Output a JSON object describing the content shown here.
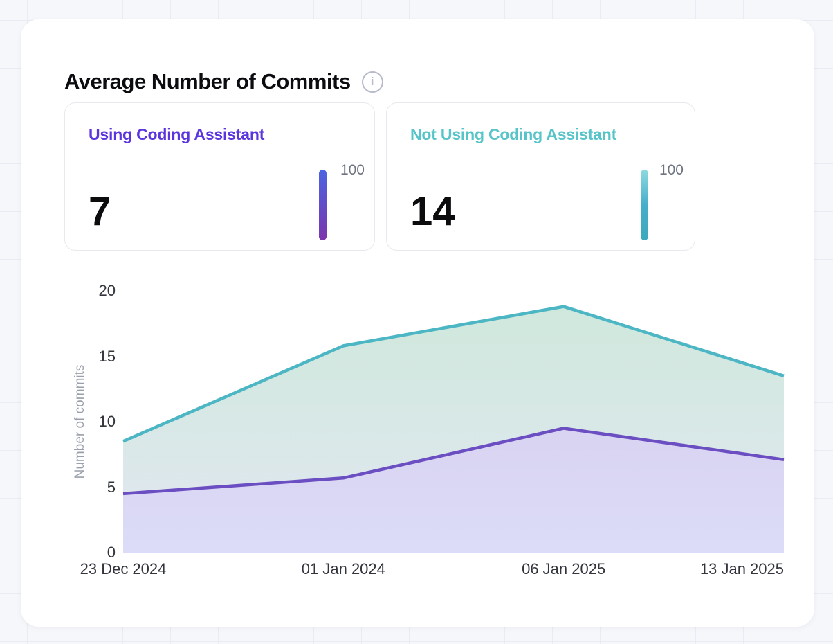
{
  "header": {
    "title": "Average Number of Commits",
    "info_icon": "i"
  },
  "stats": [
    {
      "label": "Using Coding Assistant",
      "label_color": "#5b35dd",
      "value": "7",
      "scale_max": "100",
      "bar_gradient": [
        "#4a64e2",
        "#7c35ad"
      ]
    },
    {
      "label": "Not Using Coding Assistant",
      "label_color": "#57c4c9",
      "value": "14",
      "scale_max": "100",
      "bar_gradient": [
        "#8edade",
        "#45aecb",
        "#3da9bb"
      ]
    }
  ],
  "chart_data": {
    "type": "area",
    "x": [
      "23 Dec 2024",
      "01 Jan 2024",
      "06 Jan 2025",
      "13 Jan 2025"
    ],
    "series": [
      {
        "name": "Not Using Coding Assistant",
        "values": [
          8.5,
          15.8,
          18.8,
          13.5
        ],
        "line_color": "#4cb6c4",
        "fill_top": "#cfe8dc",
        "fill_bottom": "#e2e7f2"
      },
      {
        "name": "Using Coding Assistant",
        "values": [
          4.5,
          5.7,
          9.5,
          7.1
        ],
        "line_color": "#6a4ec2",
        "fill_top": "#d8d3f1",
        "fill_bottom": "#dcdcf8"
      }
    ],
    "ylabel": "Number of commits",
    "xlabel": "",
    "yticks": [
      0,
      5,
      10,
      15,
      20
    ],
    "ylim": [
      0,
      20
    ],
    "grid": false,
    "legend": "none"
  }
}
